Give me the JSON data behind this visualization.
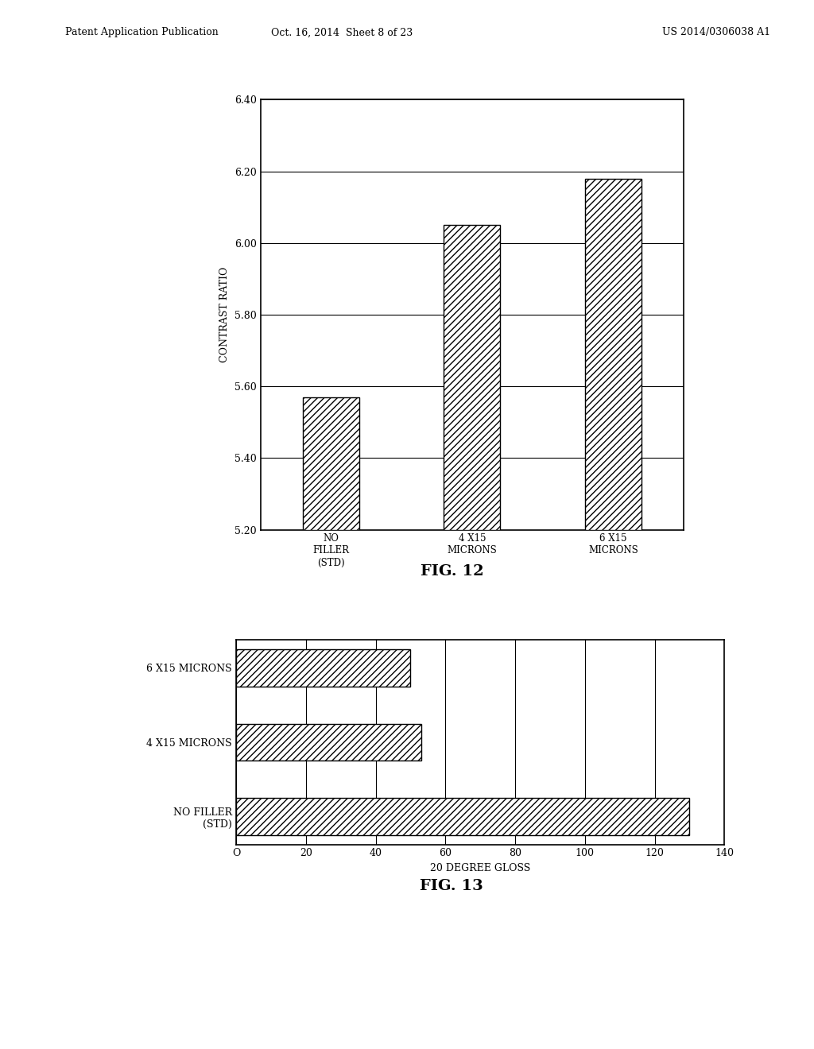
{
  "fig12": {
    "categories": [
      "NO\nFILLER\n(STD)",
      "4 X15\nMICRONS",
      "6 X15\nMICRONS"
    ],
    "values": [
      5.57,
      6.05,
      6.18
    ],
    "ylabel": "CONTRAST RATIO",
    "ylim": [
      5.2,
      6.4
    ],
    "yticks": [
      5.2,
      5.4,
      5.6,
      5.8,
      6.0,
      6.2,
      6.4
    ],
    "title": "FIG. 12",
    "bar_color": "white",
    "bar_edgecolor": "black",
    "hatch": "////"
  },
  "fig13": {
    "categories": [
      "NO FILLER\n(STD)",
      "4 X15 MICRONS",
      "6 X15 MICRONS"
    ],
    "values": [
      130,
      53,
      50
    ],
    "xlabel": "20 DEGREE GLOSS",
    "xlim": [
      0,
      140
    ],
    "xticks": [
      0,
      20,
      40,
      60,
      80,
      100,
      120,
      140
    ],
    "xtick_labels": [
      "O",
      "20",
      "40",
      "60",
      "80",
      "100",
      "120",
      "140"
    ],
    "title": "FIG. 13",
    "bar_color": "white",
    "bar_edgecolor": "black",
    "hatch": "////"
  },
  "page_header_left": "Patent Application Publication",
  "page_header_mid": "Oct. 16, 2014  Sheet 8 of 23",
  "page_header_right": "US 2014/0306038 A1",
  "bg_color": "#ffffff"
}
